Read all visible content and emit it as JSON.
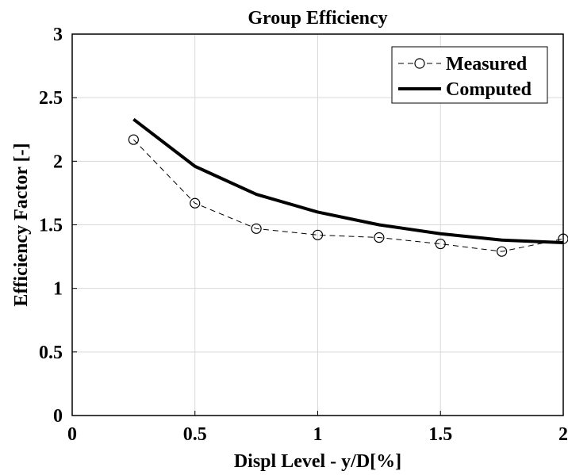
{
  "chart_data": {
    "type": "line",
    "title": "Group Efficiency",
    "xlabel": "Displ Level - y/D[%]",
    "ylabel": "Efficiency Factor [-]",
    "xlim": [
      0,
      2
    ],
    "ylim": [
      0,
      3
    ],
    "xticks": [
      0,
      0.5,
      1,
      1.5,
      2
    ],
    "xtick_labels": [
      "0",
      "0.5",
      "1",
      "1.5",
      "2"
    ],
    "yticks": [
      0,
      0.5,
      1,
      1.5,
      2,
      2.5,
      3
    ],
    "ytick_labels": [
      "0",
      "0.5",
      "1",
      "1.5",
      "2",
      "2.5",
      "3"
    ],
    "grid": true,
    "legend_position": "top-right",
    "x": [
      0.25,
      0.5,
      0.75,
      1.0,
      1.25,
      1.5,
      1.75,
      2.0
    ],
    "series": [
      {
        "name": "Measured",
        "values": [
          2.17,
          1.67,
          1.47,
          1.42,
          1.4,
          1.35,
          1.29,
          1.39
        ],
        "style": "dashed",
        "marker": "circle",
        "color": "#000000"
      },
      {
        "name": "Computed",
        "values": [
          2.33,
          1.96,
          1.74,
          1.6,
          1.5,
          1.43,
          1.38,
          1.36
        ],
        "style": "solid",
        "marker": "none",
        "color": "#000000"
      }
    ]
  }
}
